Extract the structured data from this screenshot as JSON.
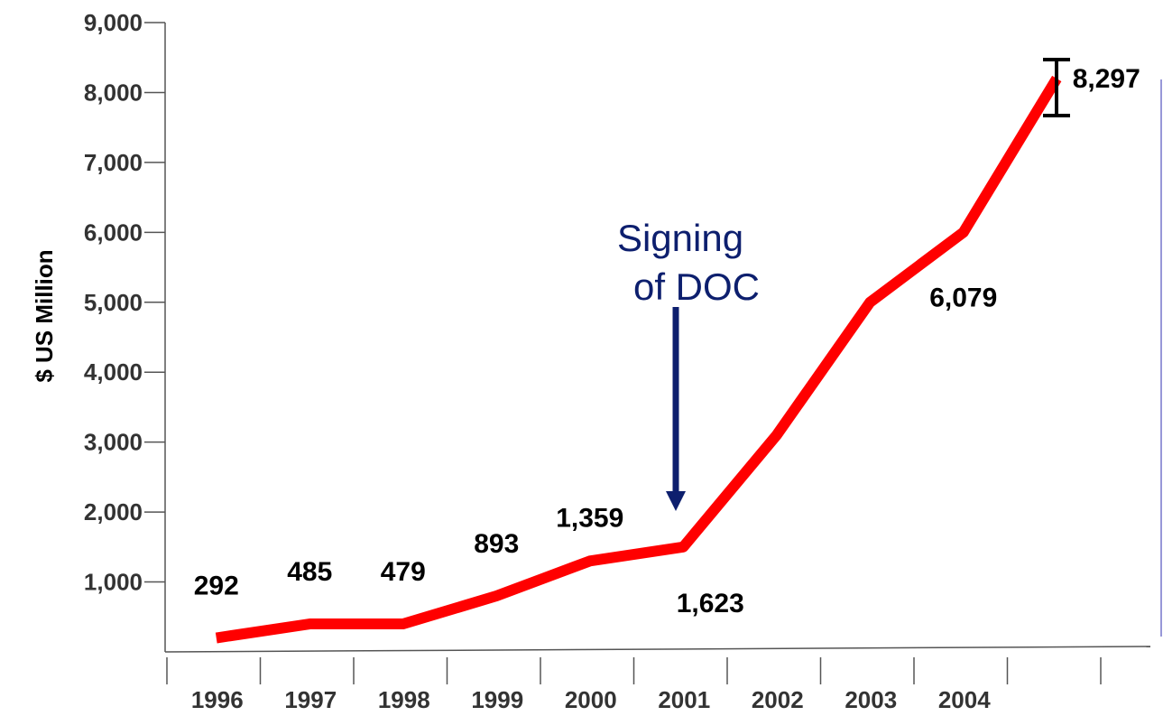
{
  "chart_data": {
    "type": "line",
    "title": "",
    "xlabel": "",
    "ylabel": "$ US Million",
    "categories": [
      "1996",
      "1997",
      "1998",
      "1999",
      "2000",
      "2001",
      "2002",
      "2003",
      "2004"
    ],
    "ylim": [
      0,
      9000
    ],
    "y_ticks": [
      "1,000",
      "2,000",
      "3,000",
      "4,000",
      "5,000",
      "6,000",
      "7,000",
      "8,000",
      "9,000"
    ],
    "series": [
      {
        "color": "#ff0000",
        "x": [
          1996,
          1997,
          1998,
          1999,
          2000,
          2001,
          2002,
          2003,
          2004,
          2005
        ],
        "y": [
          200,
          400,
          400,
          800,
          1300,
          1500,
          3100,
          5000,
          6000,
          8200
        ]
      }
    ],
    "data_labels": [
      "292",
      "485",
      "479",
      "893",
      "1,359",
      "1,623",
      "6,079",
      "8,297"
    ],
    "annotation": {
      "line1": "Signing",
      "line2": "of DOC",
      "color": "#0d1f6e"
    },
    "grid": false
  }
}
